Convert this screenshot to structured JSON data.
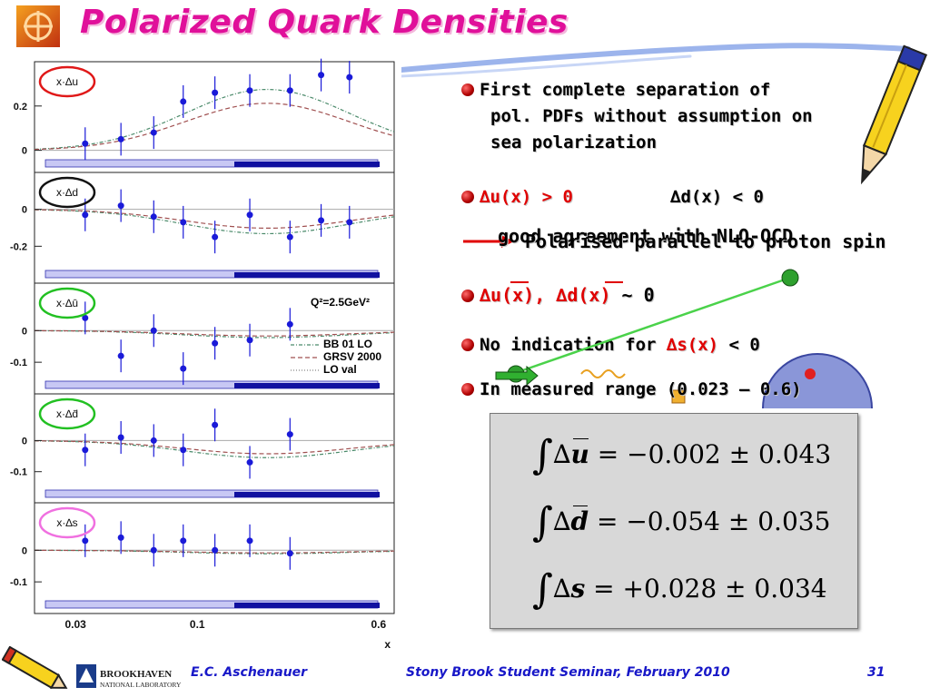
{
  "slide": {
    "title": "Polarized Quark Densities",
    "number": "31"
  },
  "footer": {
    "author": "E.C. Aschenauer",
    "event": "Stony Brook Student Seminar, February 2010",
    "institution_line1": "BROOKHAVEN",
    "institution_line2": "NATIONAL LABORATORY"
  },
  "bullets": {
    "b1_line1": "First complete separation of",
    "b1_line2": "pol. PDFs without assumption on",
    "b1_line3": "sea polarization",
    "b2_left": "∆u(x) > 0",
    "b2_right": "∆d(x) < 0",
    "b3_overlap_a": "good agreement with NLO-QCD",
    "b3_overlap_b": "Polarised parallel to proton spin",
    "b4_part1": "∆u(x), ∆d(x)",
    "b4_part2": " ~ 0",
    "b5_part1": "No indication for ",
    "b5_part2": "∆s(x)",
    "b5_part3": " < 0",
    "b6": "In measured range (0.023 – 0.6)"
  },
  "integrals": [
    {
      "sym": "u",
      "bar": true,
      "value": "= −0.002 ± 0.043"
    },
    {
      "sym": "d",
      "bar": true,
      "value": "= −0.054 ± 0.035"
    },
    {
      "sym": "s",
      "bar": false,
      "value": "= +0.028 ± 0.034"
    }
  ],
  "chart_data": {
    "type": "scatter",
    "xlabel": "x",
    "x_ticks": [
      "0.03",
      "0.1",
      "0.6"
    ],
    "annotation": "Q²=2.5GeV²",
    "legend": [
      "BB 01 LO",
      "GRSV 2000",
      "LO val"
    ],
    "panels": [
      {
        "label": "x·∆u",
        "circle_color": "#e01818",
        "yticks": [
          "0.2",
          "0"
        ],
        "x": [
          0.033,
          0.047,
          0.065,
          0.087,
          0.119,
          0.168,
          0.25,
          0.34,
          0.45
        ],
        "y": [
          0.03,
          0.05,
          0.08,
          0.22,
          0.26,
          0.27,
          0.27,
          0.34,
          0.33
        ]
      },
      {
        "label": "x·∆d",
        "circle_color": "#111111",
        "yticks": [
          "0",
          "-0.2"
        ],
        "x": [
          0.033,
          0.047,
          0.065,
          0.087,
          0.119,
          0.168,
          0.25,
          0.34,
          0.45
        ],
        "y": [
          -0.03,
          0.02,
          -0.04,
          -0.07,
          -0.15,
          -0.03,
          -0.15,
          -0.06,
          -0.07
        ]
      },
      {
        "label": "x·∆ū",
        "circle_color": "#22c022",
        "yticks": [
          "0",
          "-0.1"
        ],
        "x": [
          0.033,
          0.047,
          0.065,
          0.087,
          0.119,
          0.168,
          0.25
        ],
        "y": [
          0.04,
          -0.08,
          0.0,
          -0.12,
          -0.04,
          -0.03,
          0.02
        ]
      },
      {
        "label": "x·∆d̄",
        "circle_color": "#22c022",
        "yticks": [
          "0",
          "-0.1"
        ],
        "x": [
          0.033,
          0.047,
          0.065,
          0.087,
          0.119,
          0.168,
          0.25
        ],
        "y": [
          -0.03,
          0.01,
          0.0,
          -0.03,
          0.05,
          -0.07,
          0.02
        ]
      },
      {
        "label": "x·∆s",
        "circle_color": "#f070e0",
        "yticks": [
          "0",
          "-0.1"
        ],
        "x": [
          0.033,
          0.047,
          0.065,
          0.087,
          0.119,
          0.168,
          0.25
        ],
        "y": [
          0.03,
          0.04,
          0.0,
          0.03,
          0.0,
          0.03,
          -0.01
        ]
      }
    ]
  },
  "colors": {
    "title": "#e0109a",
    "footer": "#1818c8",
    "points": "#1a1ad8",
    "highlight": "#e00000"
  }
}
